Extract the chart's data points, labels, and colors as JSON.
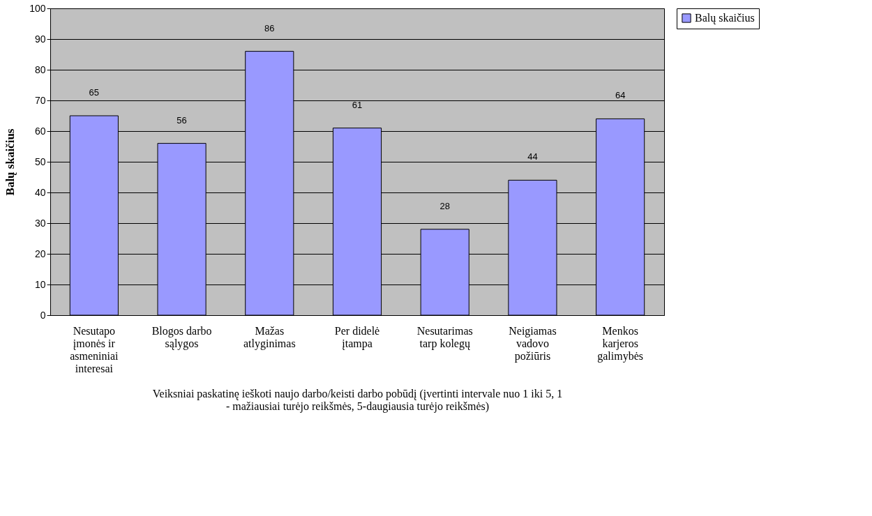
{
  "chart_data": {
    "type": "bar",
    "categories": [
      "Nesutapo įmonės ir asmeniniai interesai",
      "Blogos darbo sąlygos",
      "Mažas atlyginimas",
      "Per didelė įtampa",
      "Nesutarimas tarp kolegų",
      "Neigiamas vadovo požiūris",
      "Menkos karjeros galimybės"
    ],
    "series": [
      {
        "name": "Balų skaičius",
        "color": "#9999ff",
        "values": [
          65,
          56,
          86,
          61,
          28,
          44,
          64
        ]
      }
    ],
    "xlabel": "Veiksniai paskatinę ieškoti naujo darbo/keisti darbo pobūdį (įvertinti intervale nuo 1 iki 5, 1 - mažiausiai turėjo reikšmės, 5-daugiausia turėjo reikšmės)",
    "ylabel": "Balų skaičius",
    "ylim": [
      0,
      100
    ],
    "yticks": [
      0,
      10,
      20,
      30,
      40,
      50,
      60,
      70,
      80,
      90,
      100
    ],
    "grid": "y",
    "legend": "right",
    "data_labels": true
  }
}
